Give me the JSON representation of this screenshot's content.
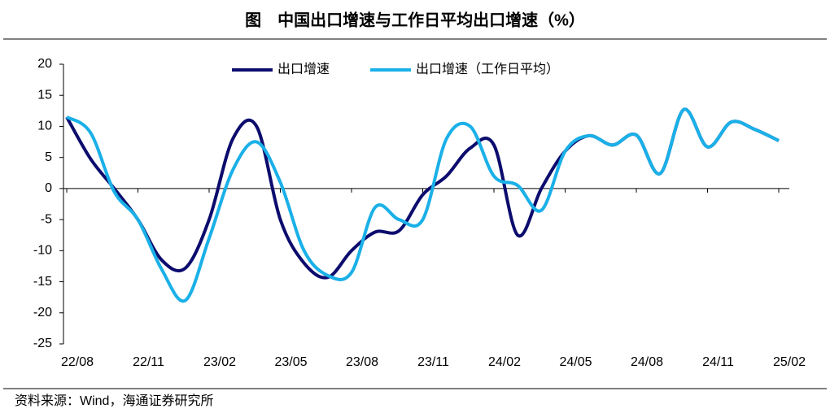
{
  "chart_data": {
    "type": "line",
    "title": "图　中国出口增速与工作日平均出口增速（%）",
    "source": "资料来源：Wind，海通证券研究所",
    "categories": [
      "22/08",
      null,
      null,
      "22/11",
      null,
      null,
      "23/02",
      null,
      null,
      "23/05",
      null,
      null,
      "23/08",
      null,
      null,
      "23/11",
      null,
      null,
      "24/02",
      null,
      null,
      "24/05",
      null,
      null,
      "24/08",
      null,
      null,
      "24/11",
      null,
      null,
      "25/02"
    ],
    "series": [
      {
        "name": "出口增速",
        "color": "#0c0c6e",
        "values": [
          11.5,
          4.8,
          0,
          -5,
          -11.5,
          -12.8,
          -5,
          8,
          10,
          -5,
          -12,
          -14.3,
          -10,
          -7,
          -6.8,
          -1,
          2,
          6.5,
          7,
          -7.5,
          0,
          6,
          8.5,
          7,
          8.6,
          2.4,
          12.7,
          6.7,
          10.7,
          9.5,
          7.7
        ]
      },
      {
        "name": "出口增速（工作日平均）",
        "color": "#1ab0e8",
        "values": [
          11.5,
          9,
          -0.5,
          -5,
          -13,
          -18,
          -8,
          3,
          7.5,
          1,
          -10,
          -14,
          -13.5,
          -3,
          -5,
          -5,
          8,
          10,
          2,
          0.5,
          -3.5,
          6,
          8.5,
          7,
          8.6,
          2.4,
          12.7,
          6.7,
          10.7,
          9.5,
          7.7
        ]
      }
    ],
    "ylim": [
      -25,
      20
    ],
    "yticks": [
      -25,
      -20,
      -15,
      -10,
      -5,
      0,
      5,
      10,
      15,
      20
    ]
  }
}
